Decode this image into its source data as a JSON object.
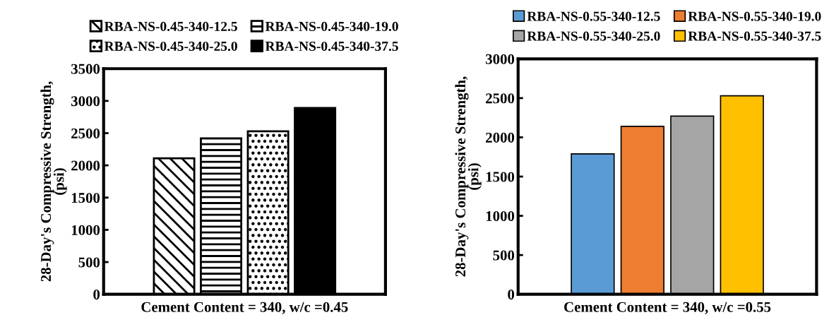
{
  "chart_data": [
    {
      "type": "bar",
      "categories": [
        null
      ],
      "xlabel": "Cement Content = 340, w/c =0.45",
      "ylabel": "28-Day's Compressive Strength,\n(psi)",
      "ylim": [
        0,
        3500
      ],
      "yticks": [
        0,
        500,
        1000,
        1500,
        2000,
        2500,
        3000,
        3500
      ],
      "legend": "top",
      "grid": false,
      "series": [
        {
          "name": "RBA-NS-0.45-340-12.5",
          "color": "#000000",
          "values": [
            2110
          ]
        },
        {
          "name": "RBA-NS-0.45-340-19.0",
          "color": "#000000",
          "values": [
            2420
          ]
        },
        {
          "name": "RBA-NS-0.45-340-25.0",
          "color": "#000000",
          "values": [
            2530
          ]
        },
        {
          "name": "RBA-NS-0.45-340-37.5",
          "color": "#000000",
          "values": [
            2890
          ]
        }
      ]
    },
    {
      "type": "bar",
      "categories": [
        null
      ],
      "xlabel": "Cement Content = 340, w/c =0.55",
      "ylabel": "28-Day's Compressive Strength,\n(psi)",
      "ylim": [
        0,
        3000
      ],
      "yticks": [
        0,
        500,
        1000,
        1500,
        2000,
        2500,
        3000
      ],
      "legend": "top",
      "grid": false,
      "series": [
        {
          "name": "RBA-NS-0.55-340-12.5",
          "color": "#5b9bd5",
          "values": [
            1790
          ]
        },
        {
          "name": "RBA-NS-0.55-340-19.0",
          "color": "#ed7d31",
          "values": [
            2140
          ]
        },
        {
          "name": "RBA-NS-0.55-340-25.0",
          "color": "#a5a5a5",
          "values": [
            2270
          ]
        },
        {
          "name": "RBA-NS-0.55-340-37.5",
          "color": "#ffc000",
          "values": [
            2530
          ]
        }
      ]
    }
  ]
}
